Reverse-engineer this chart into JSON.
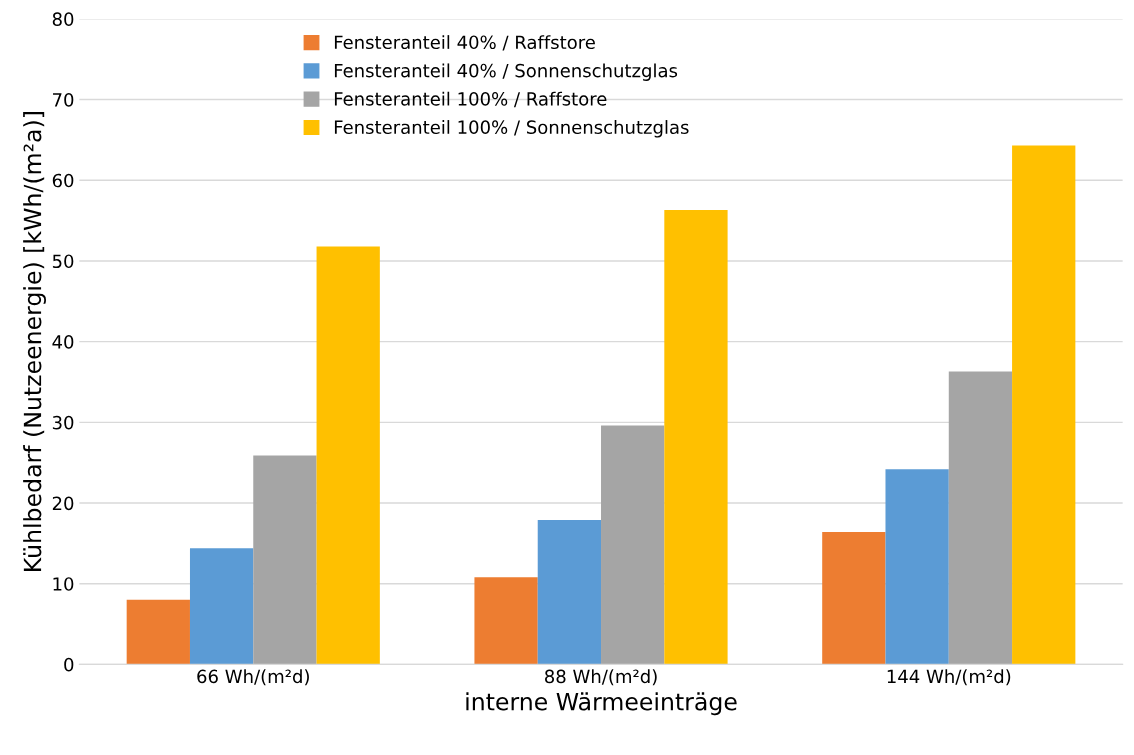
{
  "chart_data": {
    "type": "bar",
    "xlabel": "interne Wärmeeinträge",
    "ylabel": "Kühlbedarf (Nutzeenergie) [kWh/(m²a)]",
    "categories": [
      "66 Wh/(m²d)",
      "88 Wh/(m²d)",
      "144 Wh/(m²d)"
    ],
    "series": [
      {
        "name": "Fensteranteil 40% / Raffstore",
        "color": "#ed7d31",
        "values": [
          8.0,
          10.8,
          16.4
        ]
      },
      {
        "name": "Fensteranteil 40% / Sonnenschutzglas",
        "color": "#5b9bd5",
        "values": [
          14.4,
          17.9,
          24.2
        ]
      },
      {
        "name": "Fensteranteil 100% / Raffstore",
        "color": "#a5a5a5",
        "values": [
          25.9,
          29.6,
          36.3
        ]
      },
      {
        "name": "Fensteranteil 100% / Sonnenschutzglas",
        "color": "#ffc000",
        "values": [
          51.8,
          56.3,
          64.3
        ]
      }
    ],
    "ylim": [
      0,
      80
    ],
    "yticks": [
      0,
      10,
      20,
      30,
      40,
      50,
      60,
      70,
      80
    ],
    "grid": "y",
    "legend": "top"
  }
}
